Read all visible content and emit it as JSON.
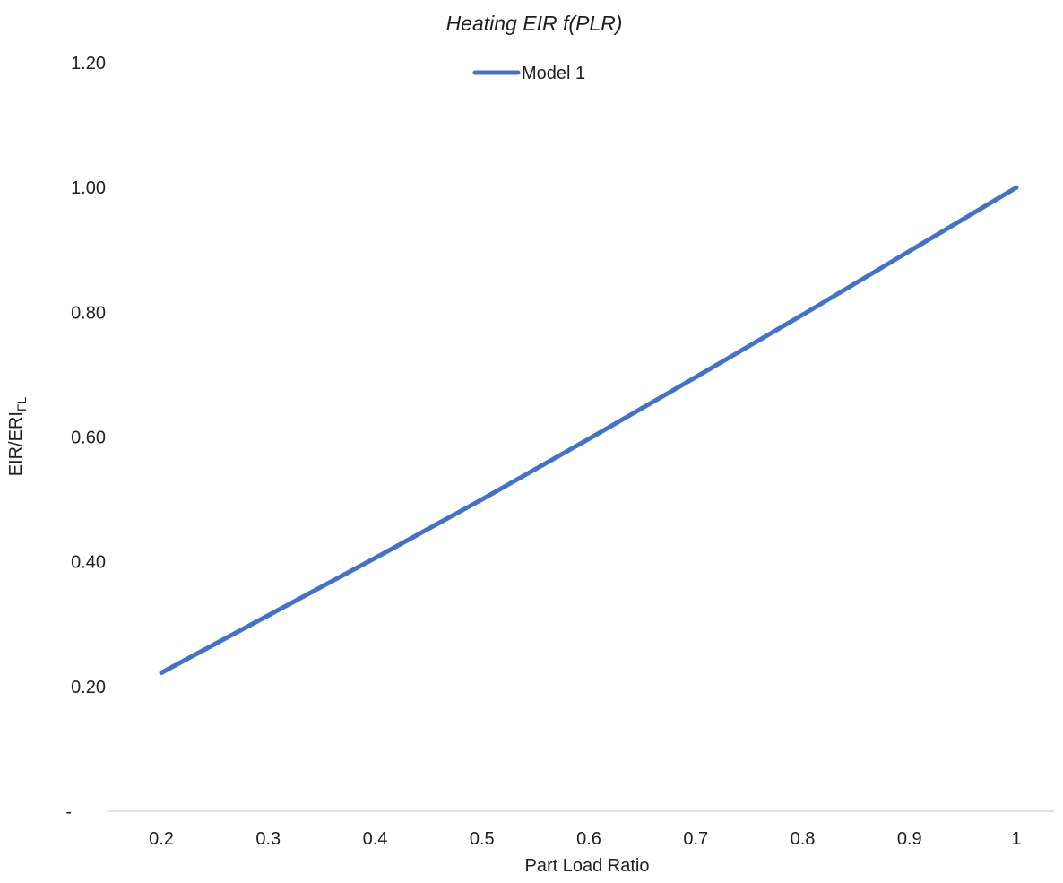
{
  "chart_data": {
    "type": "line",
    "title": "Heating EIR f(PLR)",
    "xlabel": "Part Load Ratio",
    "ylabel": "EIR/ERI",
    "ylabel_subscript": "FL",
    "x_tick_labels": [
      "0.2",
      "0.3",
      "0.4",
      "0.5",
      "0.6",
      "0.7",
      "0.8",
      "0.9",
      "1"
    ],
    "y_tick_labels": [
      "-",
      "0.20",
      "0.40",
      "0.60",
      "0.80",
      "1.00",
      "1.20"
    ],
    "xlim": [
      0.2,
      1.0
    ],
    "ylim": [
      0,
      1.2
    ],
    "grid": false,
    "legend": "top-center",
    "series": [
      {
        "name": "Model 1",
        "color": "#4472c4",
        "x": [
          0.2,
          0.3,
          0.4,
          0.5,
          0.6,
          0.7,
          0.8,
          0.9,
          1.0
        ],
        "y": [
          0.222,
          0.314,
          0.406,
          0.5,
          0.597,
          0.696,
          0.796,
          0.898,
          1.0
        ]
      }
    ]
  }
}
